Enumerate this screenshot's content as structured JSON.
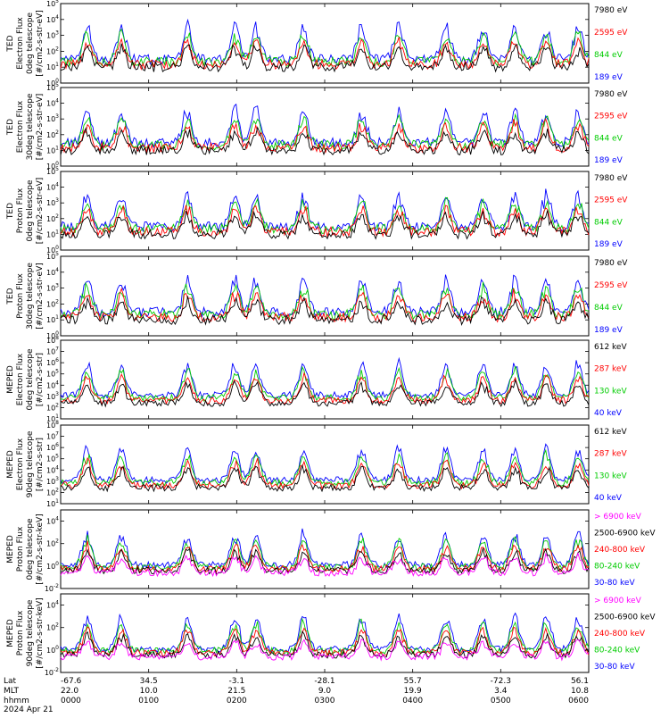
{
  "chart_data": [
    {
      "type": "line",
      "ylabel": [
        "TED",
        "Electron Flux",
        "0deg telescope",
        "[#/cm2-s-str-eV]"
      ],
      "log_scale": true,
      "ylim_exp": [
        0,
        5
      ],
      "tick_labels": [
        "10^0",
        "10^1",
        "10^2",
        "10^3",
        "10^4",
        "10^5"
      ],
      "series": [
        {
          "name": "7980 eV",
          "color": "#000000"
        },
        {
          "name": "2595 eV",
          "color": "#ff0000"
        },
        {
          "name": "844 eV",
          "color": "#00cc00"
        },
        {
          "name": "189 eV",
          "color": "#0000ff"
        }
      ]
    },
    {
      "type": "line",
      "ylabel": [
        "TED",
        "Electron Flux",
        "30deg telescope",
        "[#/cm2-s-str-eV]"
      ],
      "log_scale": true,
      "ylim_exp": [
        0,
        5
      ],
      "tick_labels": [
        "10^0",
        "10^1",
        "10^2",
        "10^3",
        "10^4",
        "10^5"
      ],
      "series": [
        {
          "name": "7980 eV",
          "color": "#000000"
        },
        {
          "name": "2595 eV",
          "color": "#ff0000"
        },
        {
          "name": "844 eV",
          "color": "#00cc00"
        },
        {
          "name": "189 eV",
          "color": "#0000ff"
        }
      ]
    },
    {
      "type": "line",
      "ylabel": [
        "TED",
        "Proton Flux",
        "0deg telescope",
        "[#/cm2-s-str-eV]"
      ],
      "log_scale": true,
      "ylim_exp": [
        0,
        5
      ],
      "tick_labels": [
        "10^0",
        "10^1",
        "10^2",
        "10^3",
        "10^4",
        "10^5"
      ],
      "series": [
        {
          "name": "7980 eV",
          "color": "#000000"
        },
        {
          "name": "2595 eV",
          "color": "#ff0000"
        },
        {
          "name": "844 eV",
          "color": "#00cc00"
        },
        {
          "name": "189 eV",
          "color": "#0000ff"
        }
      ]
    },
    {
      "type": "line",
      "ylabel": [
        "TED",
        "Proton Flux",
        "30deg telescope",
        "[#/cm2-s-str-eV]"
      ],
      "log_scale": true,
      "ylim_exp": [
        0,
        5
      ],
      "tick_labels": [
        "10^0",
        "10^1",
        "10^2",
        "10^3",
        "10^4",
        "10^5"
      ],
      "series": [
        {
          "name": "7980 eV",
          "color": "#000000"
        },
        {
          "name": "2595 eV",
          "color": "#ff0000"
        },
        {
          "name": "844 eV",
          "color": "#00cc00"
        },
        {
          "name": "189 eV",
          "color": "#0000ff"
        }
      ]
    },
    {
      "type": "line",
      "ylabel": [
        "MEPED",
        "Electron Flux",
        "0deg telescope",
        "[#/cm2-s-str]"
      ],
      "log_scale": true,
      "ylim_exp": [
        1,
        8
      ],
      "tick_labels": [
        "10^1",
        "10^2",
        "10^3",
        "10^4",
        "10^5",
        "10^6",
        "10^7",
        "10^8"
      ],
      "series": [
        {
          "name": "612 keV",
          "color": "#000000"
        },
        {
          "name": "287 keV",
          "color": "#ff0000"
        },
        {
          "name": "130 keV",
          "color": "#00cc00"
        },
        {
          "name": "40 keV",
          "color": "#0000ff"
        }
      ]
    },
    {
      "type": "line",
      "ylabel": [
        "MEPED",
        "Electron Flux",
        "90deg telescope",
        "[#/cm2-s-str]"
      ],
      "log_scale": true,
      "ylim_exp": [
        1,
        8
      ],
      "tick_labels": [
        "10^1",
        "10^2",
        "10^3",
        "10^4",
        "10^5",
        "10^6",
        "10^7",
        "10^8"
      ],
      "series": [
        {
          "name": "612 keV",
          "color": "#000000"
        },
        {
          "name": "287 keV",
          "color": "#ff0000"
        },
        {
          "name": "130 keV",
          "color": "#00cc00"
        },
        {
          "name": "40 keV",
          "color": "#0000ff"
        }
      ]
    },
    {
      "type": "line",
      "ylabel": [
        "MEPED",
        "Proton Flux",
        "0deg telescope",
        "[#/cm2-s-str-keV]"
      ],
      "log_scale": true,
      "ylim_exp": [
        -2,
        5
      ],
      "tick_labels": [
        "10^-2",
        "10^0",
        "10^2",
        "10^4"
      ],
      "series": [
        {
          "name": "> 6900 keV",
          "color": "#ff00ff"
        },
        {
          "name": "2500-6900 keV",
          "color": "#000000"
        },
        {
          "name": "240-800 keV",
          "color": "#ff0000"
        },
        {
          "name": "80-240 keV",
          "color": "#00cc00"
        },
        {
          "name": "30-80 keV",
          "color": "#0000ff"
        }
      ]
    },
    {
      "type": "line",
      "ylabel": [
        "MEPED",
        "Proton Flux",
        "90deg telescope",
        "[#/cm2-s-str-keV]"
      ],
      "log_scale": true,
      "ylim_exp": [
        -2,
        5
      ],
      "tick_labels": [
        "10^-2",
        "10^0",
        "10^2",
        "10^4"
      ],
      "series": [
        {
          "name": "> 6900 keV",
          "color": "#ff00ff"
        },
        {
          "name": "2500-6900 keV",
          "color": "#000000"
        },
        {
          "name": "240-800 keV",
          "color": "#ff0000"
        },
        {
          "name": "80-240 keV",
          "color": "#00cc00"
        },
        {
          "name": "30-80 keV",
          "color": "#0000ff"
        }
      ]
    }
  ],
  "x_axis": {
    "row_labels": [
      "Lat",
      "MLT",
      "hhmm"
    ],
    "date": "2024 Apr 21",
    "ticks": [
      {
        "lat": "-67.6",
        "mlt": "22.0",
        "hhmm": "0000"
      },
      {
        "lat": "34.5",
        "mlt": "10.0",
        "hhmm": "0100"
      },
      {
        "lat": "-3.1",
        "mlt": "21.5",
        "hhmm": "0200"
      },
      {
        "lat": "-28.1",
        "mlt": "9.0",
        "hhmm": "0300"
      },
      {
        "lat": "55.7",
        "mlt": "19.9",
        "hhmm": "0400"
      },
      {
        "lat": "-72.3",
        "mlt": "3.4",
        "hhmm": "0500"
      },
      {
        "lat": "56.1",
        "mlt": "10.8",
        "hhmm": "0600"
      }
    ]
  }
}
